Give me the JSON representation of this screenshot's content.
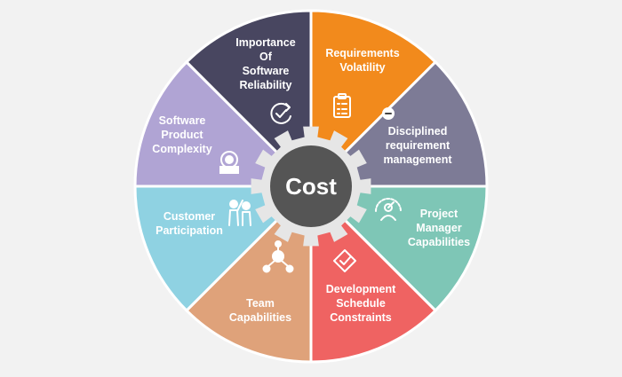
{
  "center": {
    "label": "Cost",
    "color": "#555555",
    "gear_color": "#e6e6e6"
  },
  "background": "#f2f2f2",
  "segments": [
    {
      "id": "requirements-volatility",
      "lines": [
        "Requirements",
        "Volatility"
      ],
      "color": "#f28a1c",
      "icon": "checklist-icon"
    },
    {
      "id": "disciplined-requirement-management",
      "lines": [
        "Disciplined",
        "requirement",
        "management"
      ],
      "color": "#7d7b96",
      "icon": "minus-badge-icon"
    },
    {
      "id": "project-manager-capabilities",
      "lines": [
        "Project",
        "Manager",
        "Capabilities"
      ],
      "color": "#7ec6b6",
      "icon": "gauge-person-icon"
    },
    {
      "id": "development-schedule-constraints",
      "lines": [
        "Development",
        "Schedule",
        "Constraints"
      ],
      "color": "#ef6362",
      "icon": "ticket-check-icon"
    },
    {
      "id": "team-capabilities",
      "lines": [
        "Team",
        "Capabilities"
      ],
      "color": "#dfa27a",
      "icon": "team-network-icon"
    },
    {
      "id": "customer-participation",
      "lines": [
        "Customer",
        "Participation"
      ],
      "color": "#8fd2e2",
      "icon": "people-icon"
    },
    {
      "id": "software-product-complexity",
      "lines": [
        "Software",
        "Product",
        "Complexity"
      ],
      "color": "#b0a4d4",
      "icon": "gear-box-icon"
    },
    {
      "id": "importance-of-software-reliability",
      "lines": [
        "Importance",
        "Of",
        "Software",
        "Reliability"
      ],
      "color": "#484660",
      "icon": "refresh-check-icon"
    }
  ]
}
